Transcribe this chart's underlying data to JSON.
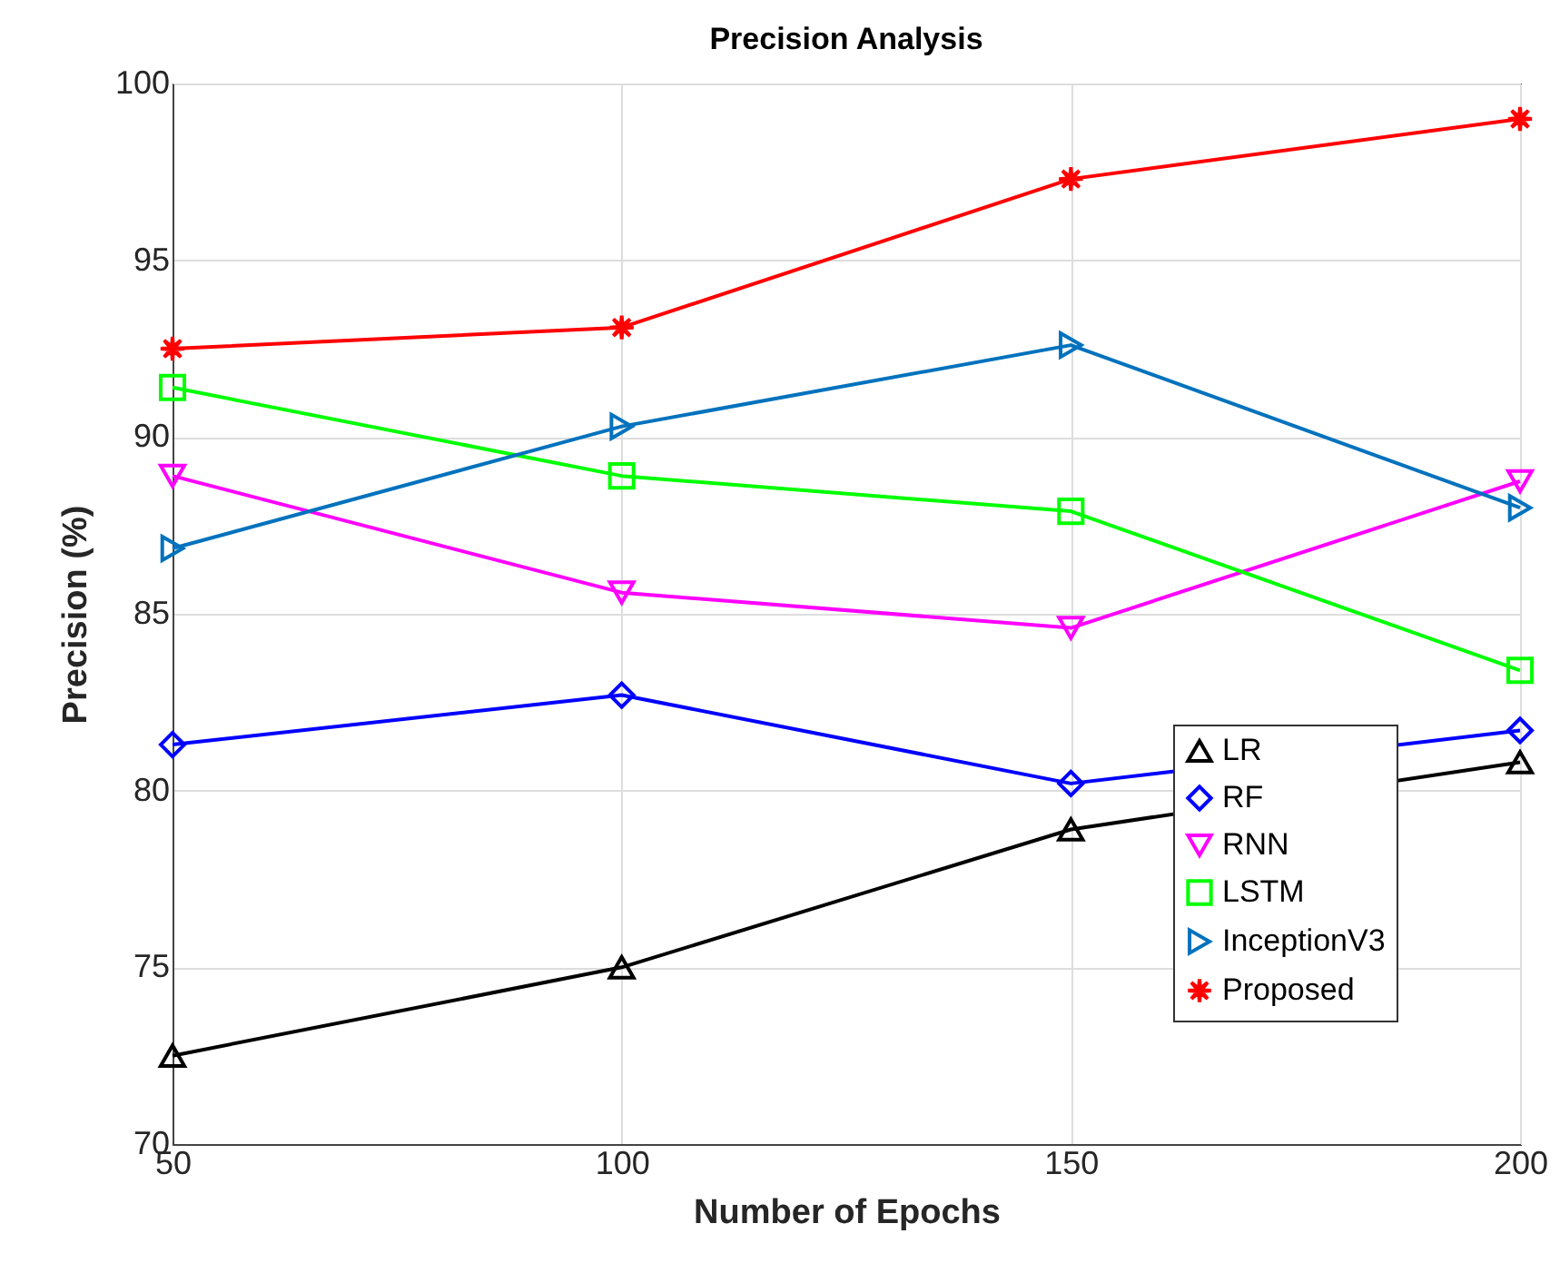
{
  "chart_data": {
    "type": "line",
    "title": "Precision Analysis",
    "xlabel": "Number of Epochs",
    "ylabel": "Precision (%)",
    "x": [
      50,
      100,
      150,
      200
    ],
    "xlim": [
      50,
      200
    ],
    "xticks": [
      50,
      100,
      150,
      200
    ],
    "ylim": [
      70,
      100
    ],
    "yticks": [
      70,
      75,
      80,
      85,
      90,
      95,
      100
    ],
    "grid": true,
    "legend": "bottom right",
    "line_style": "solid",
    "series": [
      {
        "name": "LR",
        "color": "#000000",
        "marker": "triangle",
        "values": [
          72.5,
          75,
          78.9,
          80.8
        ]
      },
      {
        "name": "RF",
        "color": "#0000ff",
        "marker": "diamond",
        "values": [
          81.3,
          82.7,
          80.2,
          81.7
        ]
      },
      {
        "name": "RNN",
        "color": "#ff00ff",
        "marker": "triangle-down",
        "values": [
          88.9,
          85.6,
          84.6,
          88.75
        ]
      },
      {
        "name": "LSTM",
        "color": "#00ff00",
        "marker": "square",
        "values": [
          91.4,
          88.9,
          87.9,
          83.4
        ]
      },
      {
        "name": "InceptionV3",
        "color": "#0072bd",
        "marker": "triangle-right",
        "values": [
          86.85,
          90.3,
          92.6,
          88.0
        ]
      },
      {
        "name": "Proposed",
        "color": "#ff0000",
        "marker": "star",
        "values": [
          92.5,
          93.1,
          97.3,
          99.0
        ]
      }
    ]
  }
}
